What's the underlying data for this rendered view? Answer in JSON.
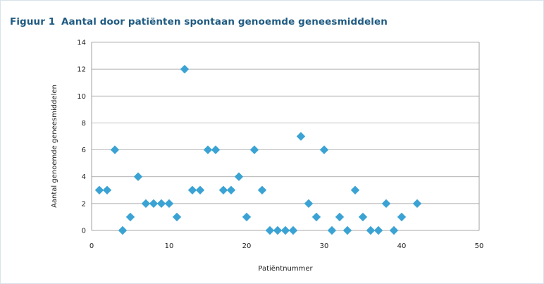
{
  "figure": {
    "label": "Figuur 1",
    "title": "Aantal door patiënten spontaan genoemde geneesmiddelen"
  },
  "chart_data": {
    "type": "scatter",
    "title": "Aantal door patiënten spontaan genoemde geneesmiddelen",
    "xlabel": "Patiëntnummer",
    "ylabel": "Aantal genoemde geneesmiddelen",
    "xlim": [
      0,
      50
    ],
    "ylim": [
      0,
      14
    ],
    "xticks": [
      0,
      10,
      20,
      30,
      40,
      50
    ],
    "yticks": [
      0,
      2,
      4,
      6,
      8,
      10,
      12,
      14
    ],
    "grid": "horizontal",
    "marker": "diamond",
    "marker_color": "#3ba3d4",
    "series": [
      {
        "x": [
          1,
          2,
          3,
          4,
          5,
          6,
          7,
          8,
          9,
          10,
          11,
          12,
          13,
          14,
          15,
          16,
          17,
          18,
          19,
          20,
          21,
          22,
          23,
          24,
          25,
          26,
          27,
          28,
          29,
          30,
          31,
          32,
          33,
          34,
          35,
          36,
          37,
          38,
          39,
          40,
          42
        ],
        "y": [
          3,
          3,
          6,
          0,
          1,
          4,
          2,
          2,
          2,
          2,
          1,
          12,
          3,
          3,
          6,
          6,
          3,
          3,
          4,
          1,
          6,
          3,
          0,
          0,
          0,
          0,
          7,
          2,
          1,
          6,
          0,
          1,
          0,
          3,
          1,
          0,
          0,
          2,
          0,
          1,
          2
        ]
      }
    ]
  }
}
